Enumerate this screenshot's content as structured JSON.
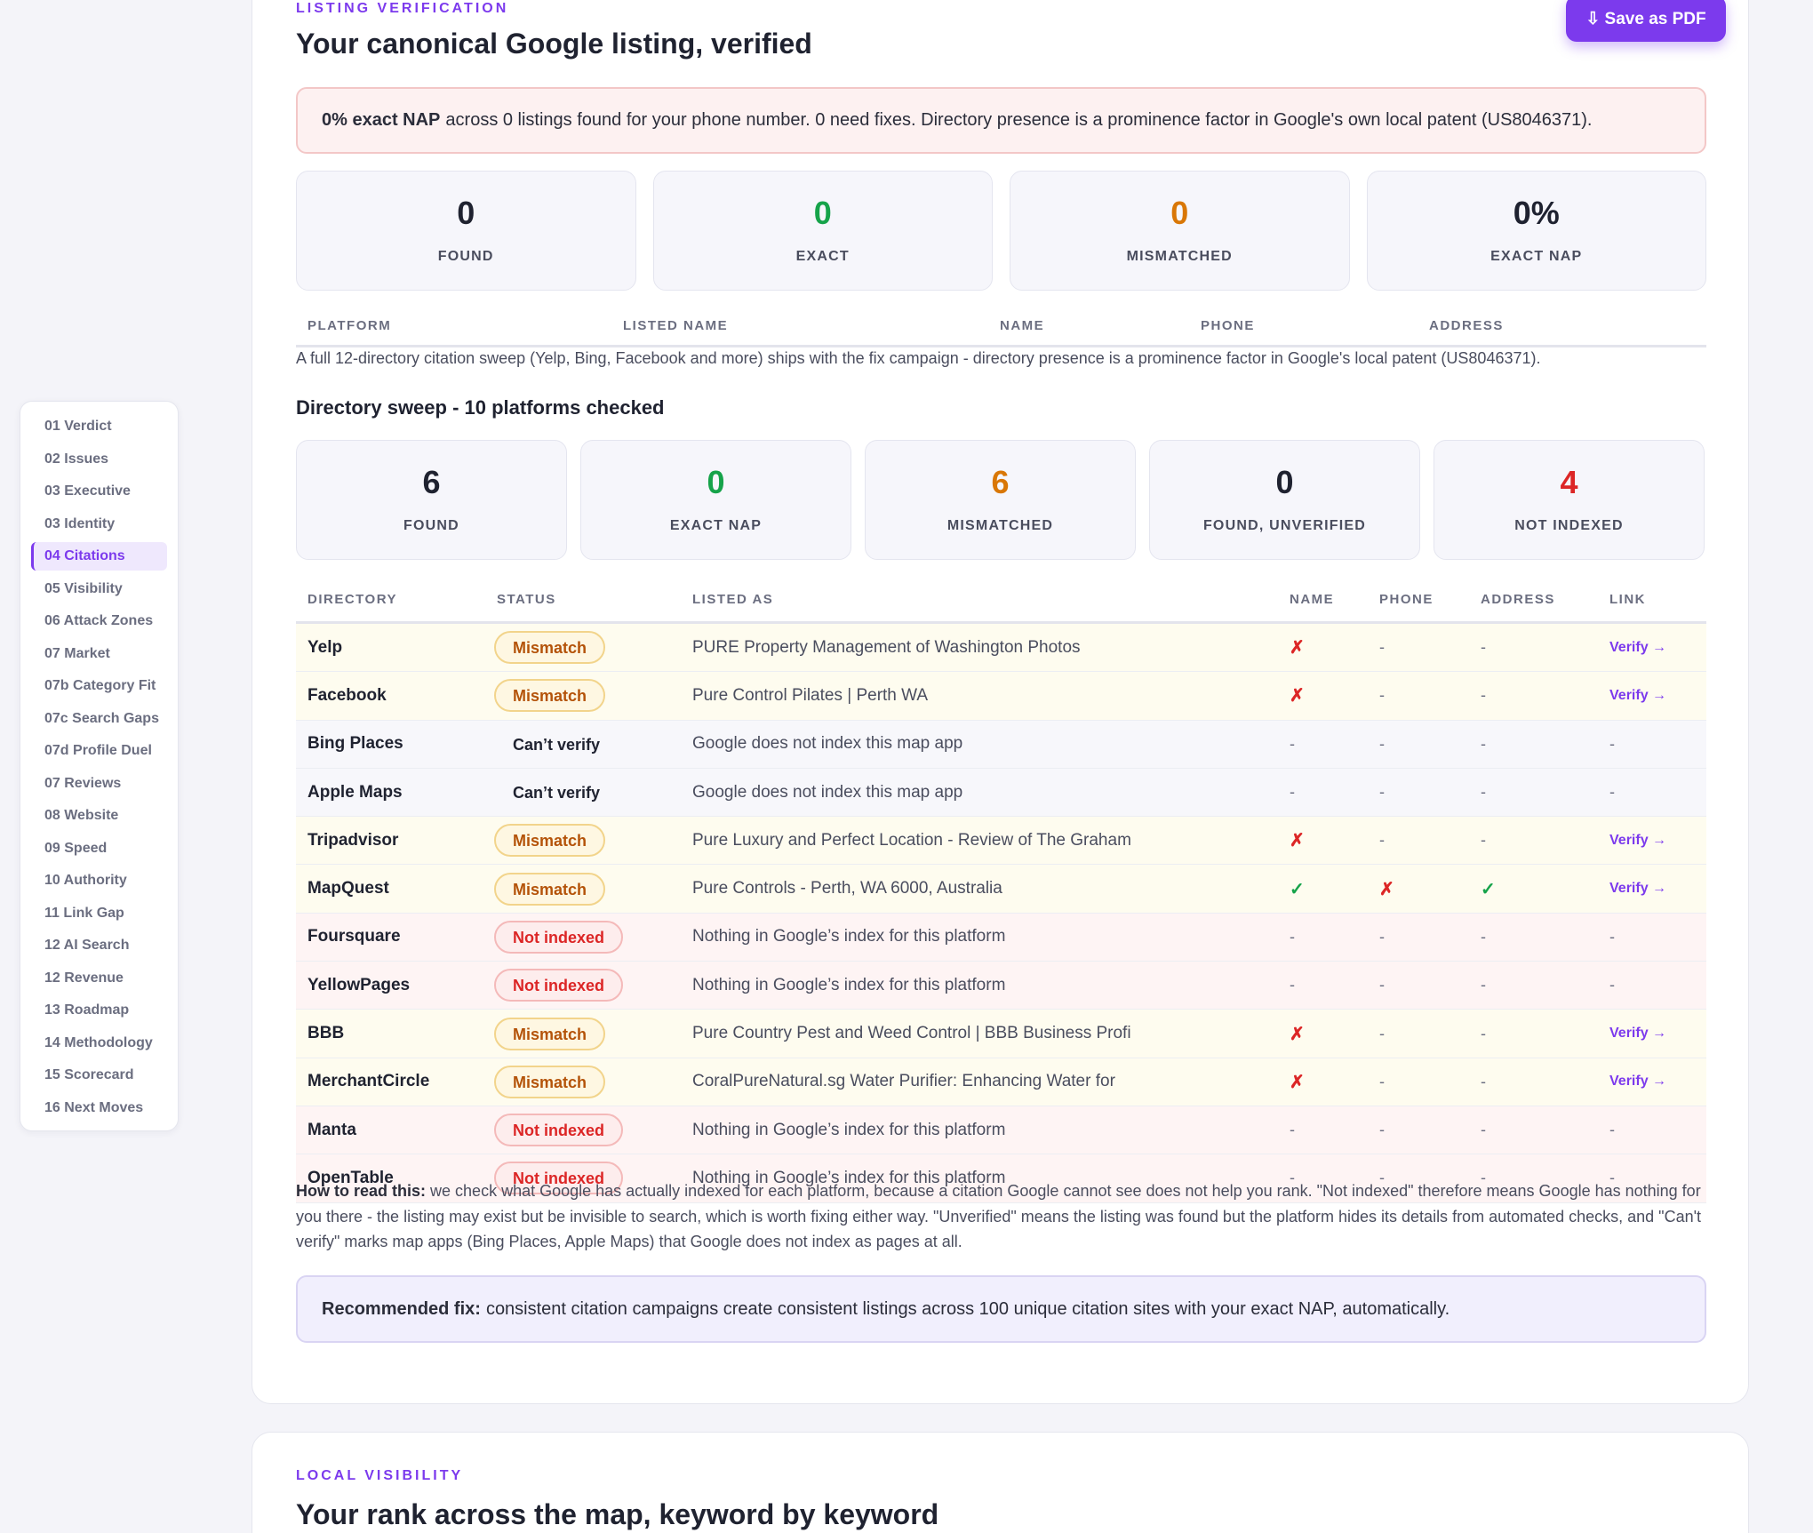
{
  "sidebar": {
    "items": [
      {
        "label": "01 Verdict"
      },
      {
        "label": "02 Issues"
      },
      {
        "label": "03 Executive"
      },
      {
        "label": "03 Identity"
      },
      {
        "label": "04 Citations"
      },
      {
        "label": "05 Visibility"
      },
      {
        "label": "06 Attack Zones"
      },
      {
        "label": "07 Market"
      },
      {
        "label": "07b Category Fit"
      },
      {
        "label": "07c Search Gaps"
      },
      {
        "label": "07d Profile Duel"
      },
      {
        "label": "07 Reviews"
      },
      {
        "label": "08 Website"
      },
      {
        "label": "09 Speed"
      },
      {
        "label": "10 Authority"
      },
      {
        "label": "11 Link Gap"
      },
      {
        "label": "12 AI Search"
      },
      {
        "label": "12 Revenue"
      },
      {
        "label": "13 Roadmap"
      },
      {
        "label": "14 Methodology"
      },
      {
        "label": "15 Scorecard"
      },
      {
        "label": "16 Next Moves"
      }
    ],
    "active_index": 4
  },
  "save_button": {
    "label": "⇩ Save as PDF"
  },
  "listing": {
    "eyebrow": "LISTING VERIFICATION",
    "title": "Your canonical Google listing, verified",
    "alert_bold": "0% exact NAP",
    "alert_text": "across 0 listings found for your phone number. 0 need fixes. Directory presence is a prominence factor in Google's own local patent (US8046371).",
    "stats": [
      {
        "value": "0",
        "label": "FOUND",
        "color": "#1f2230"
      },
      {
        "value": "0",
        "label": "EXACT",
        "color": "#16a34a"
      },
      {
        "value": "0",
        "label": "MISMATCHED",
        "color": "#d97706"
      },
      {
        "value": "0%",
        "label": "EXACT NAP",
        "color": "#1f2230"
      }
    ],
    "columns": [
      "PLATFORM",
      "LISTED NAME",
      "NAME",
      "PHONE",
      "ADDRESS"
    ],
    "note": "A full 12-directory citation sweep (Yelp, Bing, Facebook and more) ships with the fix campaign - directory presence is a prominence factor in Google's local patent (US8046371)."
  },
  "sweep": {
    "title": "Directory sweep - 10 platforms checked",
    "stats": [
      {
        "value": "6",
        "label": "FOUND",
        "color": "#1f2230"
      },
      {
        "value": "0",
        "label": "EXACT NAP",
        "color": "#16a34a"
      },
      {
        "value": "6",
        "label": "MISMATCHED",
        "color": "#d97706"
      },
      {
        "value": "0",
        "label": "FOUND, UNVERIFIED",
        "color": "#1f2230"
      },
      {
        "value": "4",
        "label": "NOT INDEXED",
        "color": "#dc2626"
      }
    ],
    "columns": [
      "DIRECTORY",
      "STATUS",
      "LISTED AS",
      "NAME",
      "PHONE",
      "ADDRESS",
      "LINK"
    ],
    "rows": [
      {
        "directory": "Yelp",
        "status": "Mismatch",
        "kind": "mismatch",
        "listed": "PURE Property Management of Washington Photos",
        "name": "✗",
        "phone": "-",
        "address": "-",
        "link": "Verify →"
      },
      {
        "directory": "Facebook",
        "status": "Mismatch",
        "kind": "mismatch",
        "listed": "Pure Control Pilates | Perth WA",
        "name": "✗",
        "phone": "-",
        "address": "-",
        "link": "Verify →"
      },
      {
        "directory": "Bing Places",
        "status": "Can’t verify",
        "kind": "cantverify",
        "listed": "Google does not index this map app",
        "name": "-",
        "phone": "-",
        "address": "-",
        "link": "-"
      },
      {
        "directory": "Apple Maps",
        "status": "Can’t verify",
        "kind": "cantverify",
        "listed": "Google does not index this map app",
        "name": "-",
        "phone": "-",
        "address": "-",
        "link": "-"
      },
      {
        "directory": "Tripadvisor",
        "status": "Mismatch",
        "kind": "mismatch",
        "listed": "Pure Luxury and Perfect Location - Review of The Graham",
        "name": "✗",
        "phone": "-",
        "address": "-",
        "link": "Verify →"
      },
      {
        "directory": "MapQuest",
        "status": "Mismatch",
        "kind": "mismatch",
        "listed": "Pure Controls - Perth, WA 6000, Australia",
        "name": "✓",
        "phone": "✗",
        "address": "✓",
        "link": "Verify →"
      },
      {
        "directory": "Foursquare",
        "status": "Not indexed",
        "kind": "notindexed",
        "listed": "Nothing in Google’s index for this platform",
        "name": "-",
        "phone": "-",
        "address": "-",
        "link": "-"
      },
      {
        "directory": "YellowPages",
        "status": "Not indexed",
        "kind": "notindexed",
        "listed": "Nothing in Google’s index for this platform",
        "name": "-",
        "phone": "-",
        "address": "-",
        "link": "-"
      },
      {
        "directory": "BBB",
        "status": "Mismatch",
        "kind": "mismatch",
        "listed": "Pure Country Pest and Weed Control | BBB Business Profi",
        "name": "✗",
        "phone": "-",
        "address": "-",
        "link": "Verify →"
      },
      {
        "directory": "MerchantCircle",
        "status": "Mismatch",
        "kind": "mismatch",
        "listed": "CoralPureNatural.sg Water Purifier: Enhancing Water for",
        "name": "✗",
        "phone": "-",
        "address": "-",
        "link": "Verify →"
      },
      {
        "directory": "Manta",
        "status": "Not indexed",
        "kind": "notindexed",
        "listed": "Nothing in Google’s index for this platform",
        "name": "-",
        "phone": "-",
        "address": "-",
        "link": "-"
      },
      {
        "directory": "OpenTable",
        "status": "Not indexed",
        "kind": "notindexed",
        "listed": "Nothing in Google’s index for this platform",
        "name": "-",
        "phone": "-",
        "address": "-",
        "link": "-"
      }
    ],
    "howto_bold": "How to read this:",
    "howto_text": "we check what Google has actually indexed for each platform, because a citation Google cannot see does not help you rank. \"Not indexed\" therefore means Google has nothing for you there - the listing may exist but be invisible to search, which is worth fixing either way. \"Unverified\" means the listing was found but the platform hides its details from automated checks, and \"Can't verify\" marks map apps (Bing Places, Apple Maps) that Google does not index as pages at all.",
    "fix_bold": "Recommended fix:",
    "fix_text": "consistent citation campaigns create consistent listings across 100 unique citation sites with your exact NAP, automatically."
  },
  "visibility": {
    "eyebrow": "LOCAL VISIBILITY",
    "title": "Your rank across the map, keyword by keyword"
  }
}
